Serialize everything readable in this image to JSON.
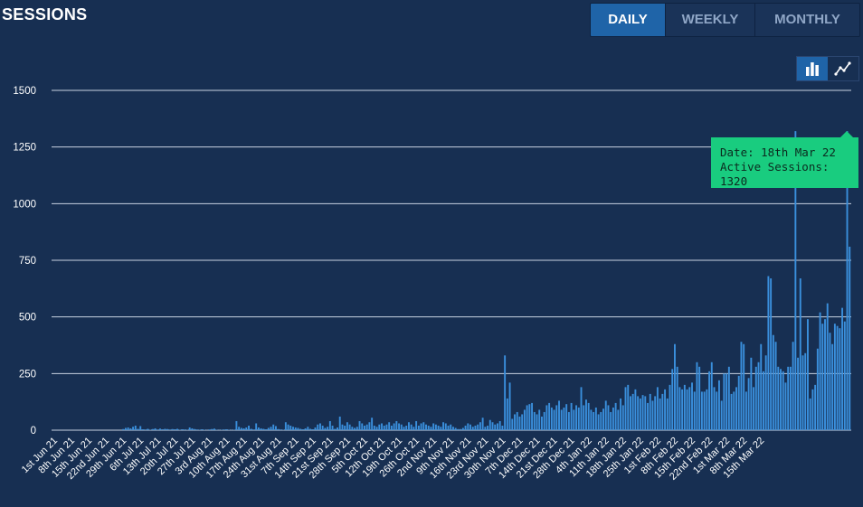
{
  "header": {
    "title": "SESSIONS"
  },
  "range_tabs": [
    {
      "label": "DAILY",
      "active": true
    },
    {
      "label": "WEEKLY",
      "active": false
    },
    {
      "label": "MONTHLY",
      "active": false
    }
  ],
  "chart_toggle": {
    "bar_icon": "bar-chart-icon",
    "line_icon": "line-chart-icon",
    "active": "bar"
  },
  "tooltip": {
    "date_line": "Date: 18th Mar 22",
    "sessions_line": "Active Sessions: 1320"
  },
  "colors": {
    "background": "#172f52",
    "bar": "#3a8fdc",
    "active_tab": "#1f64a8",
    "tooltip": "#19cc7f",
    "grid": "#c8d3e2"
  },
  "chart_data": {
    "type": "bar",
    "ylim": [
      0,
      1500
    ],
    "yticks": [
      "0",
      "250",
      "500",
      "750",
      "1000",
      "1250",
      "1500"
    ],
    "grid": true,
    "x_tick_labels": [
      "1st Jun 21",
      "8th Jun 21",
      "15th Jun 21",
      "22nd Jun 21",
      "29th Jun 21",
      "6th Jul 21",
      "13th Jul 21",
      "20th Jul 21",
      "27th Jul 21",
      "3rd Aug 21",
      "10th Aug 21",
      "17th Aug 21",
      "24th Aug 21",
      "31st Aug 21",
      "7th Sep 21",
      "14th Sep 21",
      "21st Sep 21",
      "28th Sep 21",
      "5th Oct 21",
      "12th Oct 21",
      "19th Oct 21",
      "26th Oct 21",
      "2nd Nov 21",
      "9th Nov 21",
      "16th Nov 21",
      "23rd Nov 21",
      "30th Nov 21",
      "7th Dec 21",
      "14th Dec 21",
      "21st Dec 21",
      "28th Dec 21",
      "4th Jan 22",
      "11th Jan 22",
      "18th Jan 22",
      "25th Jan 22",
      "1st Feb 22",
      "8th Feb 22",
      "15th Feb 22",
      "22nd Feb 22",
      "1st Mar 22",
      "8th Mar 22",
      "15th Mar 22"
    ],
    "x_start": "1st Jun 21",
    "x_end": "19th Mar 22",
    "values": [
      0,
      0,
      0,
      0,
      0,
      0,
      0,
      0,
      0,
      0,
      0,
      0,
      0,
      0,
      0,
      0,
      0,
      0,
      0,
      0,
      0,
      0,
      0,
      0,
      0,
      0,
      0,
      0,
      5,
      10,
      12,
      8,
      15,
      20,
      6,
      18,
      4,
      3,
      6,
      2,
      5,
      8,
      3,
      7,
      4,
      6,
      5,
      3,
      5,
      4,
      6,
      2,
      4,
      3,
      2,
      12,
      8,
      5,
      3,
      2,
      4,
      2,
      1,
      3,
      5,
      7,
      2,
      1,
      2,
      3,
      4,
      2,
      1,
      2,
      40,
      15,
      10,
      8,
      12,
      20,
      6,
      3,
      30,
      12,
      8,
      6,
      4,
      10,
      15,
      25,
      18,
      5,
      3,
      2,
      35,
      25,
      20,
      15,
      12,
      10,
      6,
      4,
      8,
      15,
      6,
      4,
      12,
      25,
      30,
      20,
      10,
      15,
      40,
      20,
      6,
      12,
      60,
      25,
      20,
      35,
      25,
      15,
      10,
      15,
      40,
      30,
      20,
      25,
      35,
      55,
      20,
      15,
      25,
      30,
      20,
      25,
      35,
      20,
      30,
      40,
      30,
      25,
      15,
      20,
      35,
      25,
      15,
      40,
      20,
      30,
      35,
      25,
      20,
      15,
      30,
      25,
      20,
      15,
      35,
      30,
      20,
      25,
      15,
      10,
      5,
      5,
      10,
      20,
      30,
      25,
      15,
      20,
      25,
      35,
      55,
      15,
      20,
      45,
      35,
      25,
      30,
      40,
      20,
      330,
      140,
      210,
      50,
      70,
      80,
      60,
      70,
      90,
      110,
      115,
      120,
      80,
      70,
      90,
      60,
      80,
      110,
      120,
      100,
      90,
      110,
      130,
      90,
      100,
      115,
      80,
      120,
      90,
      110,
      100,
      190,
      110,
      135,
      120,
      90,
      80,
      100,
      70,
      80,
      95,
      130,
      110,
      80,
      100,
      120,
      90,
      140,
      110,
      190,
      200,
      150,
      160,
      180,
      150,
      140,
      155,
      150,
      120,
      160,
      130,
      150,
      190,
      140,
      160,
      180,
      140,
      200,
      270,
      380,
      280,
      190,
      180,
      200,
      180,
      190,
      210,
      170,
      300,
      280,
      170,
      170,
      180,
      260,
      300,
      190,
      170,
      220,
      130,
      250,
      250,
      280,
      160,
      170,
      190,
      240,
      390,
      380,
      170,
      230,
      320,
      190,
      280,
      300,
      380,
      260,
      330,
      680,
      670,
      420,
      390,
      280,
      270,
      260,
      210,
      280,
      280,
      390,
      1320,
      320,
      670,
      330,
      340,
      490,
      140,
      180,
      200,
      360,
      520,
      470,
      490,
      560,
      430,
      380,
      470,
      460,
      450,
      540,
      480,
      1320,
      810
    ]
  }
}
